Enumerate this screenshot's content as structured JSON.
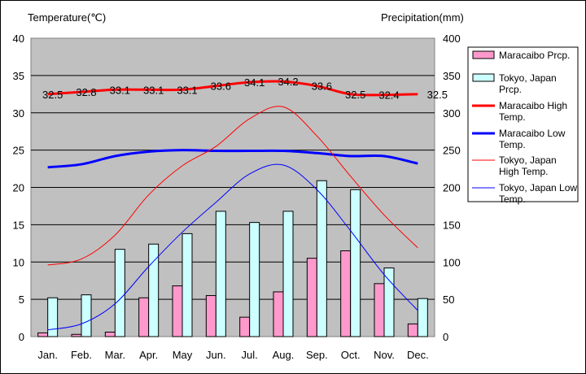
{
  "chart_data": {
    "type": "bar",
    "left_axis_title": "Temperature(℃)",
    "right_axis_title": "Precipitation(mm)",
    "categories": [
      "Jan.",
      "Feb.",
      "Mar.",
      "Apr.",
      "May",
      "Jun.",
      "Jul.",
      "Aug.",
      "Sep.",
      "Oct.",
      "Nov.",
      "Dec."
    ],
    "left_axis": {
      "min": 0,
      "max": 40,
      "step": 5,
      "ticks": [
        "0",
        "5",
        "10",
        "15",
        "20",
        "25",
        "30",
        "35",
        "40"
      ]
    },
    "right_axis": {
      "min": 0,
      "max": 400,
      "step": 50,
      "ticks": [
        "0",
        "50",
        "100",
        "150",
        "200",
        "250",
        "300",
        "350",
        "400"
      ]
    },
    "grid": true,
    "plot_background": "#c0c0c0",
    "legend_position": "right",
    "bar_series": [
      {
        "name": "Maracaibo Prcp.",
        "color": "#ff99cc",
        "axis": "right",
        "values": [
          5,
          3,
          6,
          52,
          68,
          55,
          26,
          60,
          105,
          115,
          71,
          17
        ]
      },
      {
        "name": "Tokyo, Japan Prcp.",
        "color": "#ccffff",
        "axis": "right",
        "values": [
          52,
          56,
          117,
          124,
          138,
          168,
          153,
          168,
          209,
          197,
          92,
          51
        ]
      }
    ],
    "line_series": [
      {
        "name": "Maracaibo High Temp.",
        "color": "#ff0000",
        "width": 3,
        "axis": "left",
        "values": [
          32.5,
          32.8,
          33.1,
          33.1,
          33.1,
          33.6,
          34.1,
          34.2,
          33.6,
          32.5,
          32.4,
          32.5
        ]
      },
      {
        "name": "Maracaibo Low Temp.",
        "color": "#0000ff",
        "width": 3,
        "axis": "left",
        "values": [
          22.7,
          23.1,
          24.2,
          24.8,
          25.0,
          24.9,
          24.9,
          24.9,
          24.6,
          24.2,
          24.2,
          23.2
        ]
      },
      {
        "name": "Tokyo, Japan High Temp.",
        "color": "#ff0000",
        "width": 1,
        "axis": "left",
        "values": [
          9.6,
          10.4,
          13.6,
          19.0,
          22.9,
          25.5,
          29.2,
          30.8,
          26.9,
          21.5,
          16.3,
          11.9
        ]
      },
      {
        "name": "Tokyo, Japan Low Temp.",
        "color": "#0000ff",
        "width": 1,
        "axis": "left",
        "values": [
          0.9,
          1.7,
          4.4,
          9.4,
          14.0,
          18.0,
          21.8,
          23.0,
          19.7,
          14.2,
          8.3,
          3.5
        ]
      }
    ],
    "data_labels": {
      "series": "Maracaibo High Temp.",
      "labels": [
        "32.5",
        "32.8",
        "33.1",
        "33.1",
        "33.1",
        "33.6",
        "34.1",
        "34.2",
        "33.6",
        "32.5",
        "32.4",
        "32.5"
      ]
    },
    "legend": [
      {
        "label": "Maracaibo Prcp.",
        "kind": "box",
        "color": "#ff99cc"
      },
      {
        "label": "Tokyo, Japan Prcp.",
        "kind": "box",
        "color": "#ccffff"
      },
      {
        "label": "Maracaibo High Temp.",
        "kind": "line",
        "color": "#ff0000",
        "width": 3
      },
      {
        "label": "Maracaibo Low Temp.",
        "kind": "line",
        "color": "#0000ff",
        "width": 3
      },
      {
        "label": "Tokyo, Japan High Temp.",
        "kind": "line",
        "color": "#ff0000",
        "width": 1
      },
      {
        "label": "Tokyo, Japan Low Temp.",
        "kind": "line",
        "color": "#0000ff",
        "width": 1
      }
    ]
  }
}
